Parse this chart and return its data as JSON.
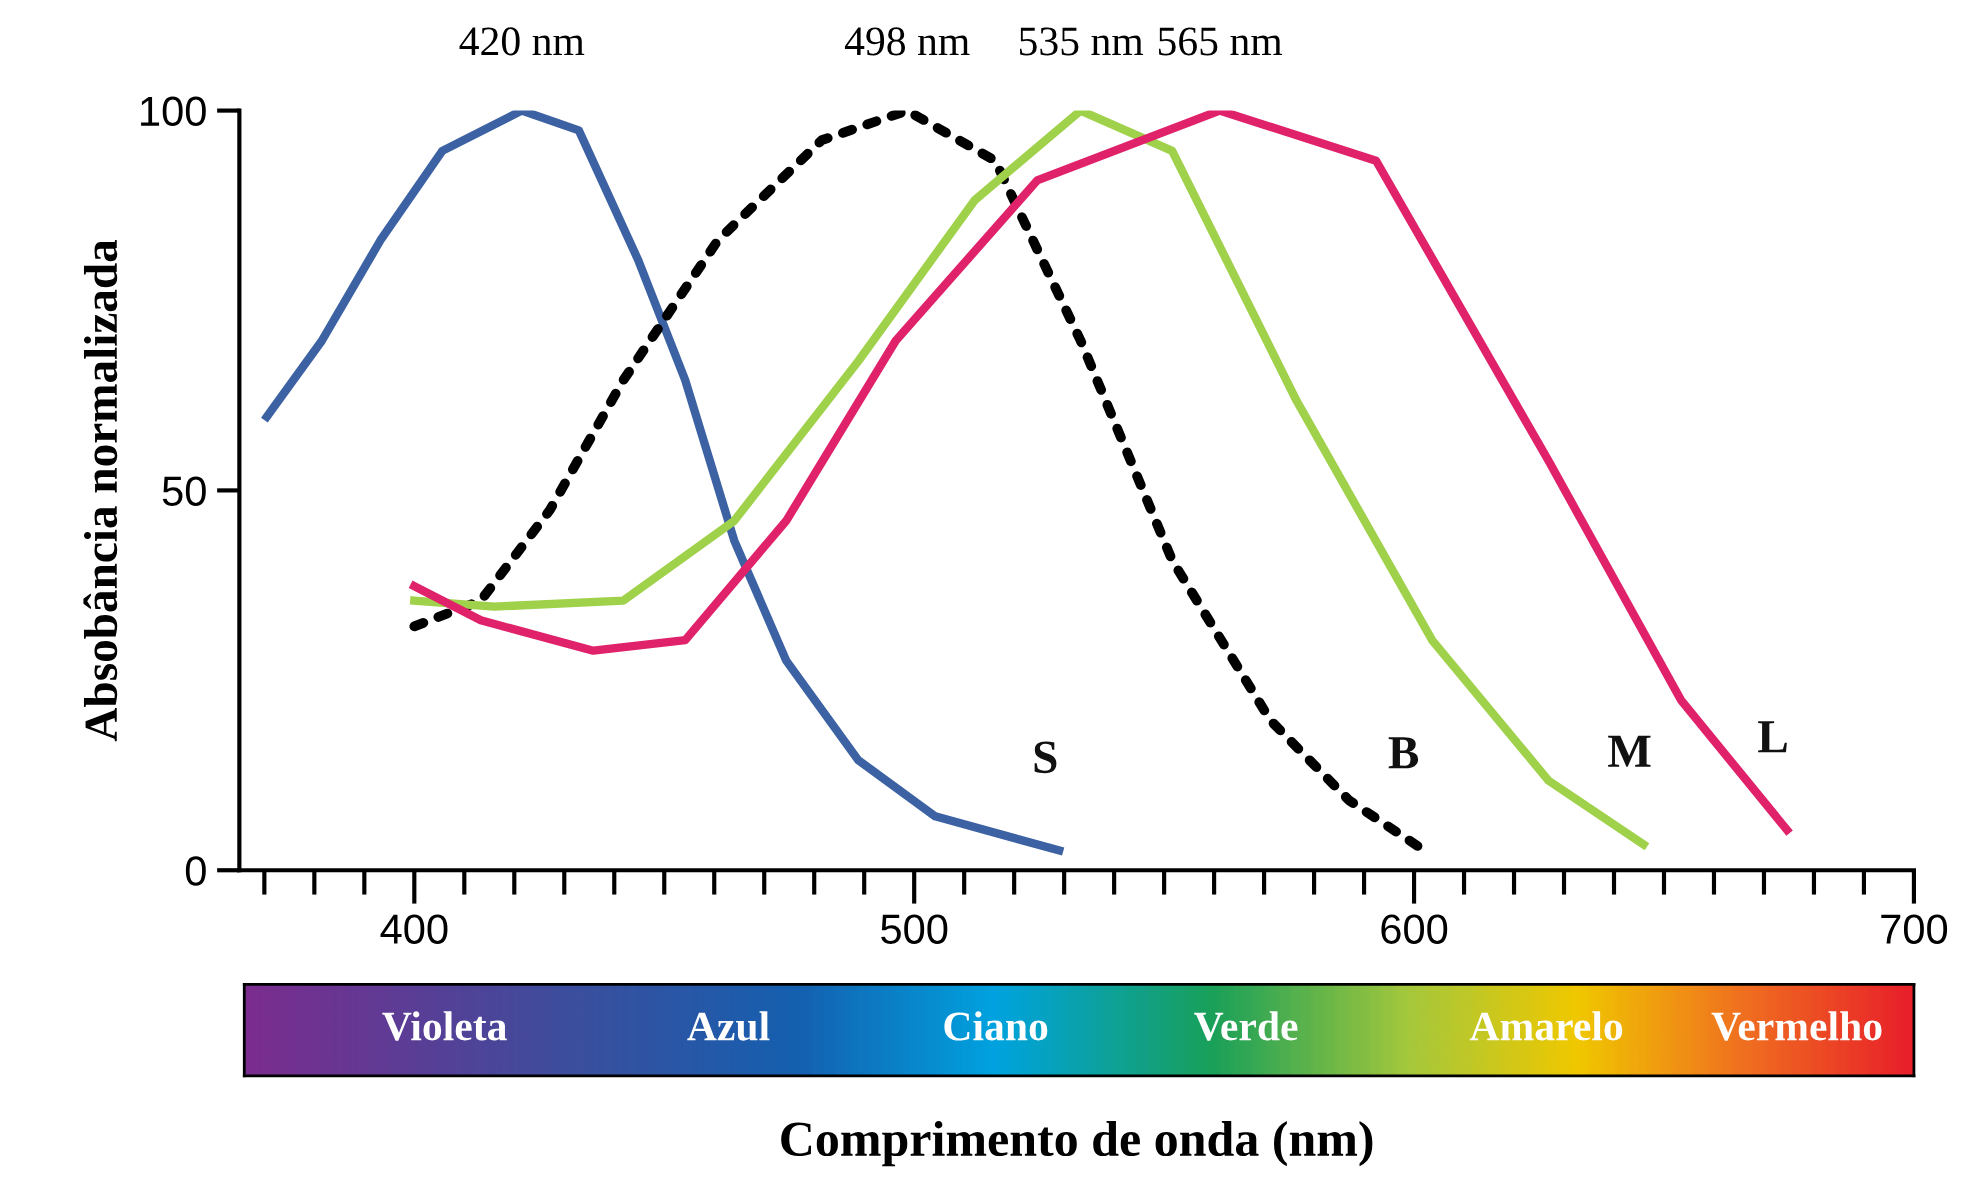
{
  "chart_data": {
    "type": "line",
    "xlabel": "Comprimento de onda (nm)",
    "ylabel": "Absobância normalizada",
    "xlim": [
      365,
      700
    ],
    "xticks": [
      {
        "value": 370,
        "label": null
      },
      {
        "value": 380,
        "label": null
      },
      {
        "value": 390,
        "label": null
      },
      400,
      {
        "value": 410,
        "label": null
      },
      {
        "value": 420,
        "label": null
      },
      {
        "value": 430,
        "label": null
      },
      {
        "value": 440,
        "label": null
      },
      {
        "value": 450,
        "label": null
      },
      {
        "value": 460,
        "label": null
      },
      {
        "value": 470,
        "label": null
      },
      {
        "value": 480,
        "label": null
      },
      {
        "value": 490,
        "label": null
      },
      500,
      {
        "value": 510,
        "label": null
      },
      {
        "value": 520,
        "label": null
      },
      {
        "value": 530,
        "label": null
      },
      {
        "value": 540,
        "label": null
      },
      {
        "value": 550,
        "label": null
      },
      {
        "value": 560,
        "label": null
      },
      {
        "value": 570,
        "label": null
      },
      {
        "value": 580,
        "label": null
      },
      {
        "value": 590,
        "label": null
      },
      600,
      {
        "value": 610,
        "label": null
      },
      {
        "value": 620,
        "label": null
      },
      {
        "value": 630,
        "label": null
      },
      {
        "value": 640,
        "label": null
      },
      {
        "value": 650,
        "label": null
      },
      {
        "value": 660,
        "label": null
      },
      {
        "value": 670,
        "label": null
      },
      {
        "value": 680,
        "label": null
      },
      {
        "value": 690,
        "label": null
      },
      700
    ],
    "ylim": [
      0,
      100
    ],
    "yticks": [
      0,
      50,
      100
    ],
    "grid": false,
    "legend": false,
    "series": [
      {
        "name": "S",
        "color": "#3d62a3",
        "line_style": "solid",
        "x": [
          370.5,
          381.5,
          393.2,
          405.6,
          421.5,
          432.9,
          444.8,
          454.2,
          464.0,
          474.4,
          488.8,
          504.2,
          529.0
        ],
        "values": [
          59.7,
          69.7,
          82.9,
          94.7,
          100,
          97.4,
          80.3,
          64.5,
          43.4,
          27.6,
          14.5,
          7.1,
          2.6
        ]
      },
      {
        "name": "B",
        "color": "#000000",
        "line_style": "dotted",
        "x": [
          400,
          413.3,
          427.1,
          441.8,
          460.7,
          481.5,
          498.6,
          516.2,
          533.3,
          551.6,
          571.3,
          587.0,
          600.7
        ],
        "values": [
          32.1,
          35.5,
          47.4,
          64.5,
          82.9,
          96.1,
          100,
          93.4,
          69.7,
          40.8,
          19.7,
          9.2,
          3.2
        ]
      },
      {
        "name": "M",
        "color": "#9fd14a",
        "line_style": "solid",
        "x": [
          400,
          416,
          441.8,
          464,
          488.8,
          512.1,
          533.3,
          551.6,
          576.5,
          603.6,
          626.9,
          645.9
        ],
        "values": [
          35.5,
          34.7,
          35.5,
          46,
          67,
          88.2,
          100,
          94.7,
          61.8,
          30.3,
          11.8,
          3.4
        ]
      },
      {
        "name": "L",
        "color": "#e0226b",
        "line_style": "solid",
        "x": [
          400,
          413.3,
          435.8,
          454.2,
          474.4,
          496.3,
          524.6,
          561.1,
          592.4,
          626.9,
          653.4,
          674.6
        ],
        "values": [
          37.4,
          32.9,
          28.9,
          30.3,
          46,
          69.7,
          90.8,
          100,
          93.4,
          53.9,
          22.4,
          5.3
        ]
      }
    ],
    "annotations": [
      "420 nm",
      "498 nm",
      "535 nm",
      "565 nm",
      "Violeta",
      "Azul",
      "Ciano",
      "Verde",
      "Amarelo",
      "Vermelho"
    ]
  }
}
